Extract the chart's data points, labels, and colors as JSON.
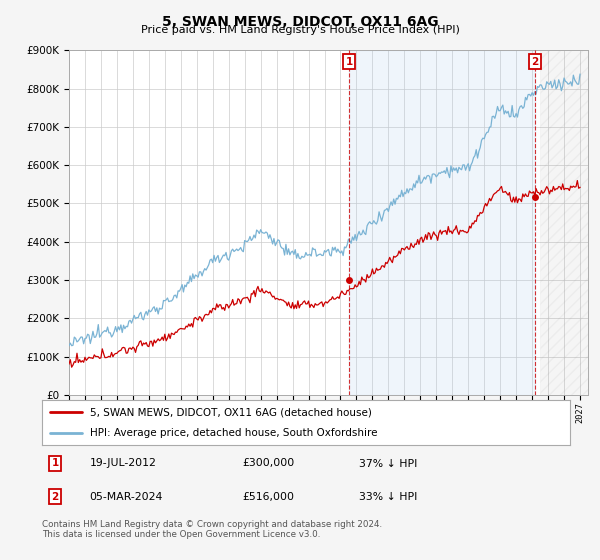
{
  "title": "5, SWAN MEWS, DIDCOT, OX11 6AG",
  "subtitle": "Price paid vs. HM Land Registry's House Price Index (HPI)",
  "ylim": [
    0,
    900000
  ],
  "xlim_start": 1995.0,
  "xlim_end": 2027.5,
  "hpi_color": "#7ab3d4",
  "price_color": "#cc0000",
  "bg_color": "#ffffff",
  "grid_color": "#cccccc",
  "fig_bg": "#f5f5f5",
  "annotation1_date": "19-JUL-2012",
  "annotation1_price": "£300,000",
  "annotation1_note": "37% ↓ HPI",
  "annotation2_date": "05-MAR-2024",
  "annotation2_price": "£516,000",
  "annotation2_note": "33% ↓ HPI",
  "legend_label1": "5, SWAN MEWS, DIDCOT, OX11 6AG (detached house)",
  "legend_label2": "HPI: Average price, detached house, South Oxfordshire",
  "footer": "Contains HM Land Registry data © Crown copyright and database right 2024.\nThis data is licensed under the Open Government Licence v3.0.",
  "marker1_x": 2012.54,
  "marker1_y": 300000,
  "marker2_x": 2024.17,
  "marker2_y": 516000,
  "shade_start": 2012.54,
  "shade_end": 2024.17,
  "hatch_start": 2024.5,
  "hatch_end": 2027.5
}
